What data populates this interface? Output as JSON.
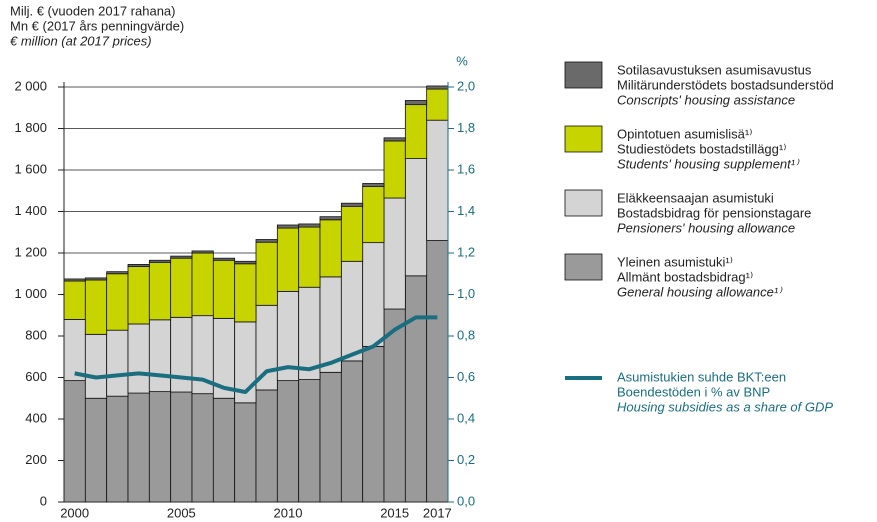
{
  "chart_data": {
    "type": "bar",
    "y_title": [
      "Milj. € (vuoden 2017 rahana)",
      "Mn € (2017 års penningvärde)",
      "€ million (at 2017 prices)"
    ],
    "y2_title": "%",
    "categories": [
      "2000",
      null,
      null,
      null,
      null,
      "2005",
      null,
      null,
      null,
      null,
      "2010",
      null,
      null,
      null,
      null,
      "2015",
      null,
      "2017"
    ],
    "ylim": [
      0,
      2000
    ],
    "yticks": [
      0,
      {
        "value": 200,
        "label": "200"
      },
      {
        "value": 400,
        "label": "400"
      },
      {
        "value": 600,
        "label": "600"
      },
      {
        "value": 800,
        "label": "800"
      },
      {
        "value": 1000,
        "label": "1 000"
      },
      {
        "value": 1200,
        "label": "1 200"
      },
      {
        "value": 1400,
        "label": "1 400"
      },
      {
        "value": 1600,
        "label": "1 600"
      },
      {
        "value": 1800,
        "label": "1 800"
      },
      {
        "value": 2000,
        "label": "2 000"
      }
    ],
    "y2lim": [
      0,
      2
    ],
    "y2ticks": [
      {
        "value": 0,
        "label": "0,0"
      },
      {
        "value": 0.2,
        "label": "0,2"
      },
      {
        "value": 0.4,
        "label": "0,4"
      },
      {
        "value": 0.6,
        "label": "0,6"
      },
      {
        "value": 0.8,
        "label": "0,8"
      },
      {
        "value": 1,
        "label": "1,0"
      },
      {
        "value": 1.2,
        "label": "1,2"
      },
      {
        "value": 1.4,
        "label": "1,4"
      },
      {
        "value": 1.6,
        "label": "1,6"
      },
      {
        "value": 1.8,
        "label": "1,8"
      },
      {
        "value": 2,
        "label": "2,0"
      }
    ],
    "grid": true,
    "stacked": true,
    "series": [
      {
        "name": [
          "Yleinen asumistuki¹⁾",
          "Allmänt bostadsbidrag¹⁾",
          "General housing allowance¹⁾"
        ],
        "color": "#9a9a9a",
        "values": [
          585,
          500,
          510,
          525,
          532,
          530,
          522,
          500,
          478,
          540,
          585,
          590,
          625,
          680,
          750,
          930,
          1090,
          1260
        ]
      },
      {
        "name": [
          "Eläkkeensaajan asumistuki",
          "Bostadsbidrag för pensionstagare",
          "Pensioners' housing allowance"
        ],
        "color": "#d4d4d4",
        "values": [
          295,
          308,
          318,
          333,
          346,
          360,
          376,
          385,
          390,
          408,
          430,
          445,
          460,
          480,
          500,
          535,
          565,
          580
        ]
      },
      {
        "name": [
          "Opintotuen asumislisä¹⁾",
          "Studiestödets bostadstillägg¹⁾",
          "Students' housing supplement¹⁾"
        ],
        "color": "#c8d400",
        "values": [
          185,
          262,
          272,
          277,
          277,
          285,
          302,
          280,
          280,
          304,
          305,
          290,
          275,
          265,
          270,
          275,
          260,
          150
        ]
      },
      {
        "name": [
          "Sotilasavustuksen asumisavustus",
          "Militärunderstödets bostadsunderstöd",
          "Conscripts' housing assistance"
        ],
        "color": "#6a6a6a",
        "values": [
          10,
          10,
          10,
          10,
          10,
          10,
          10,
          10,
          12,
          13,
          15,
          15,
          15,
          15,
          15,
          15,
          20,
          15
        ]
      },
      {
        "name": [
          "Asumistukien suhde BKT:een",
          "Boendestöden i % av BNP",
          "Housing subsidies as a share of GDP"
        ],
        "color": "#1a6e80",
        "type": "line",
        "axis": "y2",
        "values": [
          0.62,
          0.6,
          0.61,
          0.62,
          0.61,
          0.6,
          0.59,
          0.55,
          0.53,
          0.63,
          0.65,
          0.64,
          0.67,
          0.71,
          0.75,
          0.83,
          0.89,
          0.89
        ]
      }
    ]
  }
}
